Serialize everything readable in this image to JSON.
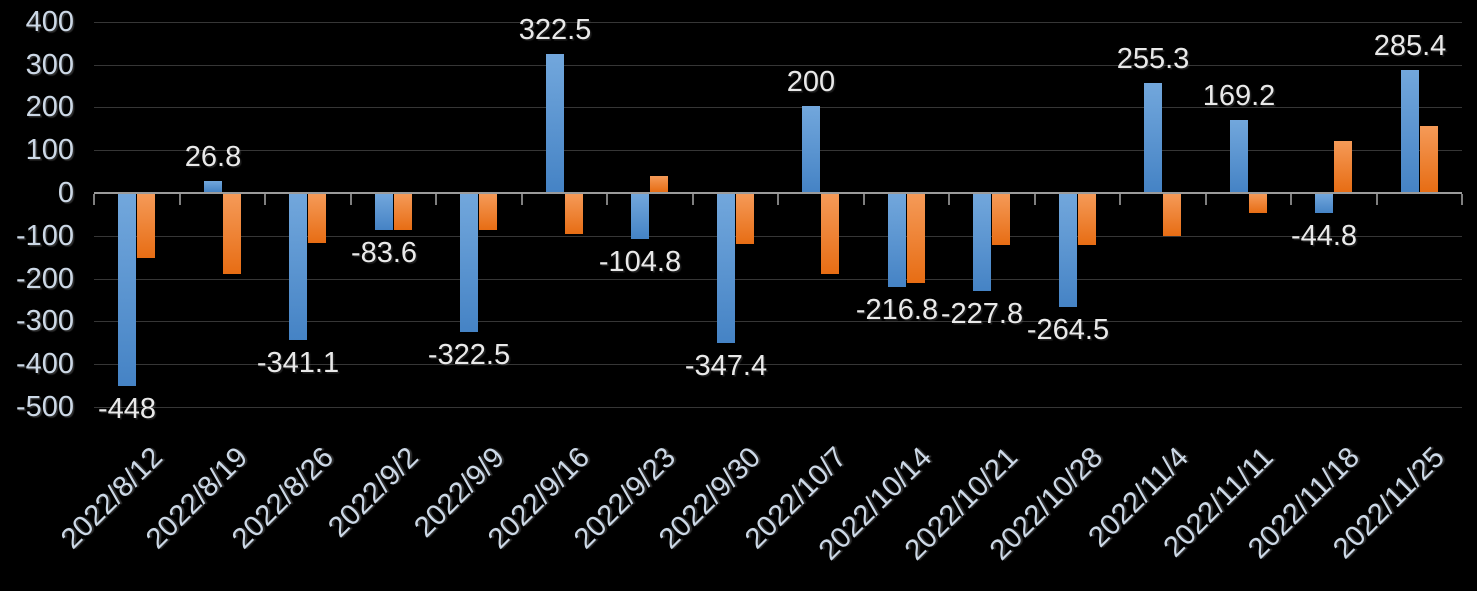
{
  "chart_data": {
    "type": "bar",
    "title": "",
    "legend": "none",
    "grid": true,
    "background": "#000000",
    "xlabel": "",
    "ylabel": "",
    "ylim": [
      -500,
      400
    ],
    "ytick_interval": 100,
    "ytick_labels": [
      "400",
      "300",
      "200",
      "100",
      "0",
      "-100",
      "-200",
      "-300",
      "-400",
      "-500"
    ],
    "categories": [
      "2022/8/12",
      "2022/8/19",
      "2022/8/26",
      "2022/9/2",
      "2022/9/9",
      "2022/9/16",
      "2022/9/23",
      "2022/9/30",
      "2022/10/7",
      "2022/10/14",
      "2022/10/21",
      "2022/10/28",
      "2022/11/4",
      "2022/11/11",
      "2022/11/18",
      "2022/11/25"
    ],
    "series": [
      {
        "name": "blue",
        "color_top": "#72a7dc",
        "color_bottom": "#4583c5",
        "values": [
          -448,
          26.8,
          -341.1,
          -83.6,
          -322.5,
          322.5,
          -104.8,
          -347.4,
          200,
          -216.8,
          -227.8,
          -264.5,
          255.3,
          169.2,
          -44.8,
          285.4
        ],
        "data_labels": [
          "-448",
          "26.8",
          "-341.1",
          "-83.6",
          "-322.5",
          "322.5",
          "-104.8",
          "-347.4",
          "200",
          "-216.8",
          "-227.8",
          "-264.5",
          "255.3",
          "169.2",
          "-44.8",
          "285.4"
        ]
      },
      {
        "name": "orange",
        "color_top": "#f59a58",
        "color_bottom": "#e76d14",
        "values": [
          -150,
          -186,
          -115,
          -84,
          -84,
          -93,
          38,
          -116,
          -187,
          -207,
          -118,
          -119,
          -98,
          -45,
          119,
          154
        ],
        "data_labels": []
      }
    ]
  },
  "colors": {
    "background": "#000000",
    "gridline": "#363636",
    "axis_line": "#9b9b9b",
    "tick_mark": "#7f7f7f",
    "axis_text": "#ccd8e6",
    "data_label_text": "#e9e9e9",
    "bar_blue": "#5b9bd5",
    "bar_orange": "#ed7d31"
  }
}
